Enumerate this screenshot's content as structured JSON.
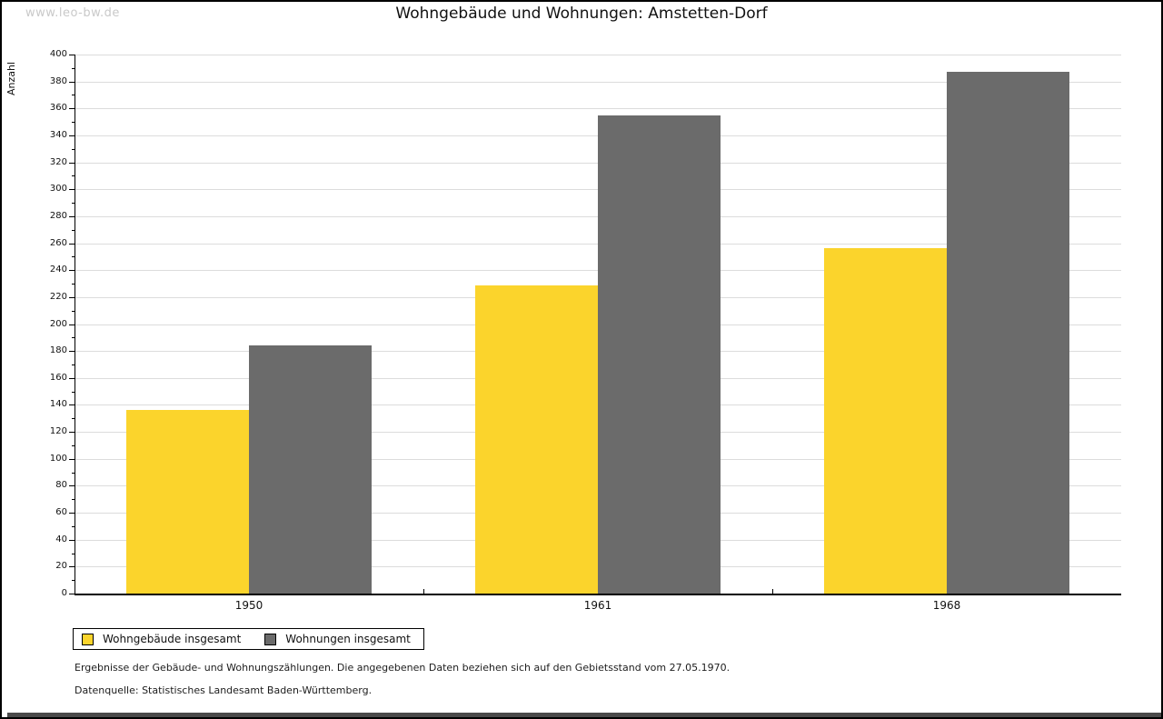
{
  "watermark": "www.leo-bw.de",
  "title": "Wohngebäude und Wohnungen: Amstetten-Dorf",
  "chart_data": {
    "type": "bar",
    "title": "Wohngebäude und Wohnungen: Amstetten-Dorf",
    "ylabel": "Anzahl",
    "xlabel": "",
    "categories": [
      "1950",
      "1961",
      "1968"
    ],
    "series": [
      {
        "name": "Wohngebäude insgesamt",
        "color": "#FBD42C",
        "values": [
          136,
          229,
          256
        ]
      },
      {
        "name": "Wohnungen insgesamt",
        "color": "#6B6B6B",
        "values": [
          184,
          355,
          387
        ]
      }
    ],
    "ylim": [
      0,
      400
    ],
    "ytick_major": 20,
    "ytick_minor": 10,
    "grid": true,
    "gridline_color": "#dcdcdc",
    "legend_position": "bottom-left"
  },
  "footnotes": [
    "Ergebnisse der Gebäude- und Wohnungszählungen. Die angegebenen Daten beziehen sich auf den Gebietsstand vom 27.05.1970.",
    "Datenquelle: Statistisches Landesamt Baden-Württemberg."
  ]
}
